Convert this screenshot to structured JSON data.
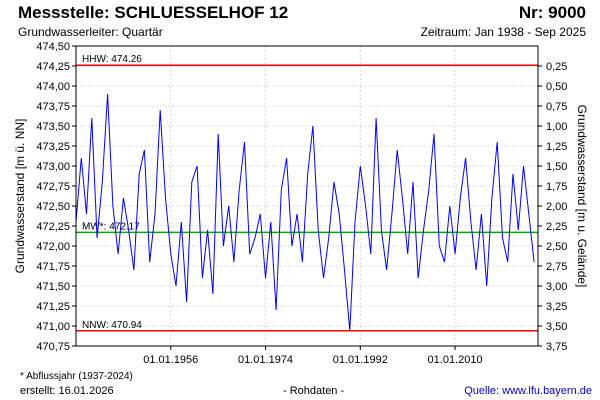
{
  "header": {
    "title_left": "Messstelle: SCHLUESSELHOF 12",
    "title_right": "Nr: 9000",
    "subtitle_left": "Grundwasserleiter: Quartär",
    "subtitle_right": "Zeitraum: Jan 1938 - Sep 2025"
  },
  "footer": {
    "note": "* Abflussjahr (1937-2024)",
    "created": "erstellt:  16.01.2026",
    "raw_data": "- Rohdaten -",
    "source": "Quelle:  www.lfu.bayern.de"
  },
  "chart_data": {
    "type": "line",
    "title": "Messstelle: SCHLUESSELHOF 12",
    "ylabel": "Grundwasserstand [m ü. NN]",
    "y2label": "Grundwasserstand [m u. Gelände]",
    "ylim": [
      470.75,
      474.5
    ],
    "y_ticks": [
      "474,50",
      "474,25",
      "474,00",
      "473,75",
      "473,50",
      "473,25",
      "473,00",
      "472,75",
      "472,50",
      "472,25",
      "472,00",
      "471,75",
      "471,50",
      "471,25",
      "471,00",
      "470,75"
    ],
    "y2_ticks": [
      "0,25",
      "0,50",
      "0,75",
      "1,00",
      "1,25",
      "1,50",
      "1,75",
      "2,00",
      "2,25",
      "2,50",
      "2,75",
      "3,00",
      "3,25",
      "3,50",
      "3,75"
    ],
    "x_ticks": [
      "01.01.1956",
      "01.01.1974",
      "01.01.1992",
      "01.01.2010"
    ],
    "grid": true,
    "reference_lines": [
      {
        "label": "HHW: 474.26",
        "value": 474.26,
        "color": "#ff0000"
      },
      {
        "label": "MW*: 472.17",
        "value": 472.17,
        "color": "#00aa00"
      },
      {
        "label": "NNW: 470.94",
        "value": 470.94,
        "color": "#ff0000"
      }
    ],
    "series_color": "#0000ff",
    "series": [
      {
        "x": [
          1938.0,
          1939.0,
          1940.0,
          1941.0,
          1942.0,
          1943.0,
          1944.0,
          1945.0,
          1946.0,
          1947.0,
          1948.0,
          1949.0,
          1950.0,
          1951.0,
          1952.0,
          1953.0,
          1954.0,
          1955.0,
          1956.0,
          1957.0,
          1958.0,
          1959.0,
          1960.0,
          1961.0,
          1962.0,
          1963.0,
          1964.0,
          1965.0,
          1966.0,
          1967.0,
          1968.0,
          1969.0,
          1970.0,
          1971.0,
          1972.0,
          1973.0,
          1974.0,
          1975.0,
          1976.0,
          1977.0,
          1978.0,
          1979.0,
          1980.0,
          1981.0,
          1982.0,
          1983.0,
          1984.0,
          1985.0,
          1986.0,
          1987.0,
          1988.0,
          1989.0,
          1990.0,
          1991.0,
          1992.0,
          1993.0,
          1994.0,
          1995.0,
          1996.0,
          1997.0,
          1998.0,
          1999.0,
          2000.0,
          2001.0,
          2002.0,
          2003.0,
          2004.0,
          2005.0,
          2006.0,
          2007.0,
          2008.0,
          2009.0,
          2010.0,
          2011.0,
          2012.0,
          2013.0,
          2014.0,
          2015.0,
          2016.0,
          2017.0,
          2018.0,
          2019.0,
          2020.0,
          2021.0,
          2022.0,
          2023.0,
          2024.0,
          2025.0
        ],
        "y": [
          472.3,
          473.1,
          472.4,
          473.6,
          472.1,
          472.8,
          473.9,
          472.5,
          471.9,
          472.6,
          472.2,
          471.7,
          472.9,
          473.2,
          471.8,
          472.4,
          473.7,
          472.6,
          471.9,
          471.5,
          472.3,
          471.3,
          472.8,
          473.0,
          471.6,
          472.2,
          471.4,
          473.4,
          472.0,
          472.5,
          471.8,
          472.7,
          473.3,
          471.9,
          472.1,
          472.4,
          471.6,
          472.3,
          471.2,
          472.7,
          473.1,
          472.0,
          472.4,
          471.8,
          472.9,
          473.5,
          472.2,
          471.6,
          472.1,
          472.8,
          472.4,
          471.7,
          470.94,
          472.3,
          473.0,
          472.5,
          471.9,
          473.6,
          472.2,
          471.7,
          472.4,
          473.2,
          472.6,
          471.9,
          472.8,
          471.6,
          472.2,
          472.7,
          473.4,
          472.0,
          471.8,
          472.5,
          471.9,
          472.6,
          473.1,
          472.3,
          471.7,
          472.4,
          471.5,
          472.6,
          473.3,
          472.1,
          471.8,
          472.9,
          472.2,
          473.0,
          472.4,
          471.8
        ]
      }
    ]
  }
}
